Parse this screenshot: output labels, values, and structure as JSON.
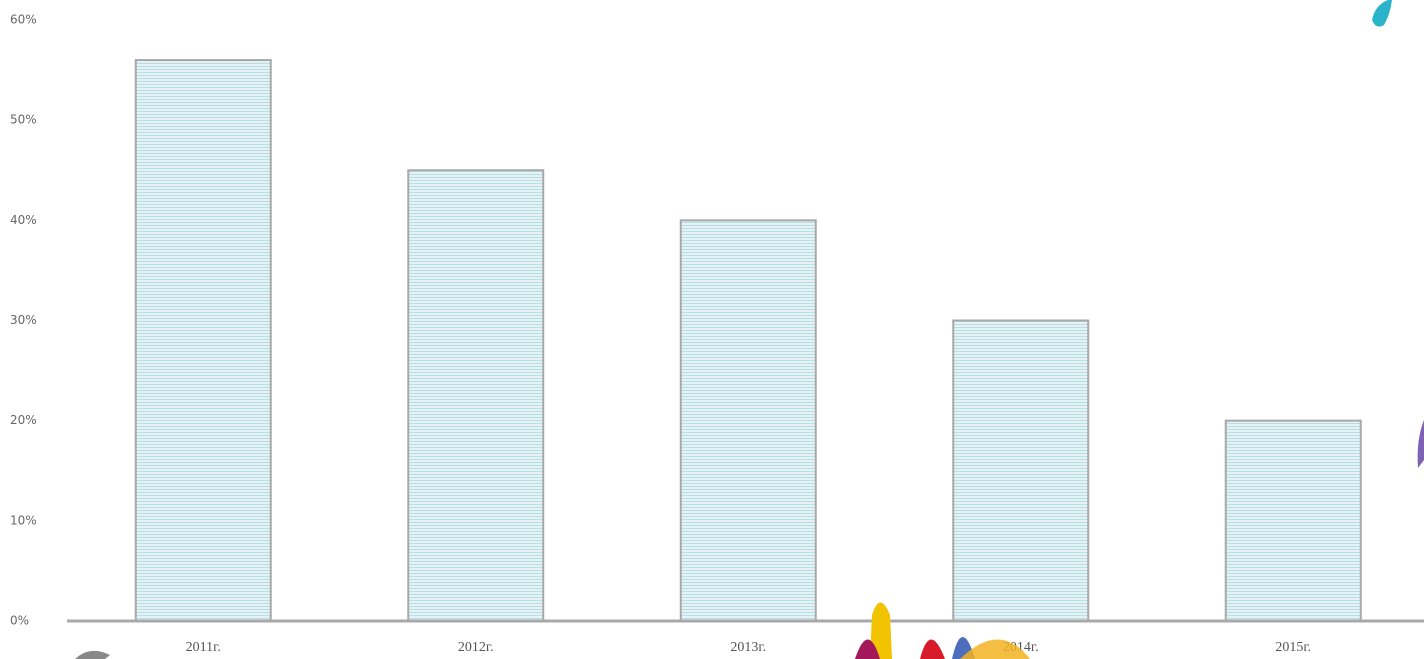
{
  "chart_data": {
    "type": "bar",
    "categories": [
      "2011г.",
      "2012г.",
      "2013г.",
      "2014г.",
      "2015г."
    ],
    "values": [
      56,
      45,
      40,
      30,
      20
    ],
    "color": "#d6eef2",
    "ylim": [
      0,
      60
    ],
    "yticks": [
      {
        "value": 0,
        "label": "0%"
      },
      {
        "value": 10,
        "label": "10%"
      },
      {
        "value": 20,
        "label": "20%"
      },
      {
        "value": 30,
        "label": "30%"
      },
      {
        "value": 40,
        "label": "40%"
      },
      {
        "value": 50,
        "label": "50%"
      },
      {
        "value": 60,
        "label": "60%"
      }
    ]
  }
}
